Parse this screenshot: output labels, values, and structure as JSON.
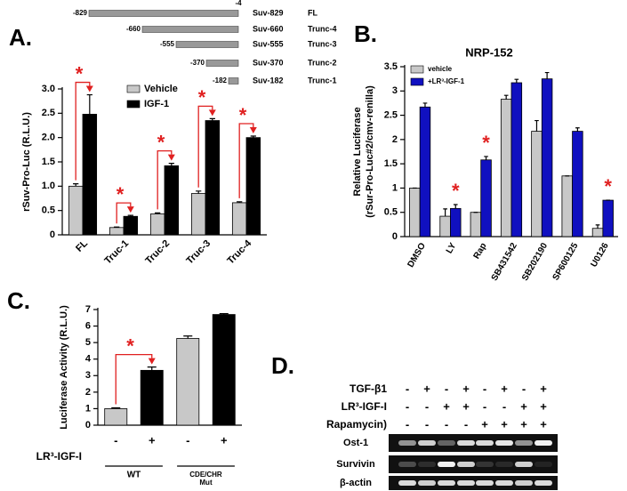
{
  "chart_data": [
    {
      "type": "bar",
      "panel_label": "A.",
      "ylabel": [
        "rSuv-Pro-Luc (R.L.U.)"
      ],
      "categories": [
        "FL",
        "Truc-1",
        "Truc-2",
        "Truc-3",
        "Truc-4"
      ],
      "series": [
        {
          "name": "Vehicle",
          "color": "#c8c8c8",
          "values": [
            1.0,
            0.15,
            0.43,
            0.85,
            0.66
          ],
          "errors": [
            0.05,
            0.01,
            0.02,
            0.05,
            0.02
          ]
        },
        {
          "name": "IGF-1",
          "color": "#000000",
          "values": [
            2.48,
            0.38,
            1.42,
            2.35,
            2.0
          ],
          "errors": [
            0.4,
            0.02,
            0.05,
            0.04,
            0.03
          ]
        }
      ],
      "significance": [
        "*",
        "*",
        "*",
        "*",
        "*"
      ],
      "ylim": [
        0,
        3
      ],
      "yticks": [
        0,
        0.5,
        {
          "value": 1,
          "label": "1.0"
        },
        1.5,
        {
          "value": 2,
          "label": "2.0"
        },
        2.5,
        {
          "value": 3,
          "label": "3.0"
        }
      ]
    },
    {
      "type": "bar",
      "panel_label": "B.",
      "title": "NRP-152",
      "ylabel": [
        "Relative Luciferase",
        "(rSur-Pro-Luc#2/cmv-renilla)"
      ],
      "categories": [
        "DMSO",
        "LY",
        "Rap",
        "SB431542",
        "SB202190",
        "SP600125",
        "U0126"
      ],
      "series": [
        {
          "name": "vehicle",
          "color": "#c8c8c8",
          "values": [
            1.0,
            0.42,
            0.5,
            2.83,
            2.17,
            1.25,
            0.17
          ],
          "errors": [
            0,
            0.15,
            0,
            0.08,
            0.22,
            0,
            0.07
          ]
        },
        {
          "name": "+LR³-IGF-1",
          "color": "#1010c0",
          "values": [
            2.67,
            0.58,
            1.58,
            3.17,
            3.25,
            2.17,
            0.75
          ],
          "errors": [
            0.08,
            0.08,
            0.07,
            0.07,
            0.13,
            0.07,
            0
          ]
        }
      ],
      "significance": [
        null,
        "*",
        "*",
        null,
        null,
        null,
        "*"
      ],
      "ylim": [
        0,
        3.5
      ],
      "yticks": [
        0,
        0.5,
        1,
        1.5,
        2,
        2.5,
        3,
        3.5
      ]
    },
    {
      "type": "bar",
      "panel_label": "C.",
      "ylabel": [
        "Luciferase Activity (R.L.U.)"
      ],
      "categories": [
        "-",
        "+",
        "-",
        "+"
      ],
      "x_row_label": "LR³-IGF-I",
      "groups": [
        [
          "WT"
        ],
        [
          "CDE/CHR",
          "Mut"
        ]
      ],
      "values": [
        1.0,
        3.32,
        5.25,
        6.7
      ],
      "errors": [
        0.05,
        0.2,
        0.15,
        0.05
      ],
      "colors": [
        "#c8c8c8",
        "#000000",
        "#c8c8c8",
        "#000000"
      ],
      "significance": [
        null,
        "*",
        null,
        null
      ],
      "ylim": [
        0,
        7
      ],
      "yticks": [
        0,
        1,
        2,
        3,
        4,
        5,
        6,
        7
      ]
    }
  ],
  "construct_map": {
    "end_label": "-4",
    "constructs": [
      {
        "start": "-829",
        "name": "Suv-829",
        "label": "FL"
      },
      {
        "start": "-660",
        "name": "Suv-660",
        "label": "Trunc-4"
      },
      {
        "start": "-555",
        "name": "Suv-555",
        "label": "Trunc-3"
      },
      {
        "start": "-370",
        "name": "Suv-370",
        "label": "Trunc-2"
      },
      {
        "start": "-182",
        "name": "Suv-182",
        "label": "Trunc-1"
      }
    ]
  },
  "gel": {
    "panel_label": "D.",
    "treatments": [
      {
        "label": "TGF-β1",
        "signs": [
          "-",
          "+",
          "-",
          "+",
          "-",
          "+",
          "-",
          "+"
        ]
      },
      {
        "label": "LR³-IGF-I",
        "signs": [
          "-",
          "-",
          "+",
          "+",
          "-",
          "-",
          "+",
          "+"
        ]
      },
      {
        "label": "Rapamycin)",
        "signs": [
          "-",
          "-",
          "-",
          "-",
          "+",
          "+",
          "+",
          "+"
        ]
      }
    ],
    "bands": [
      "Ost-1",
      "Survivin",
      "β-actin"
    ]
  }
}
